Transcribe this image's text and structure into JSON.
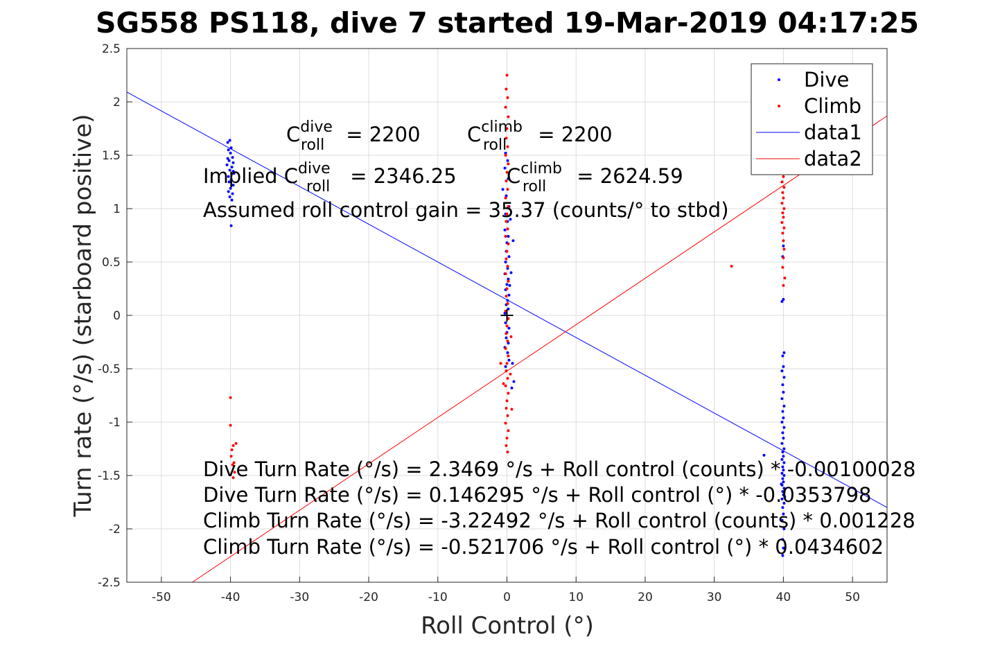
{
  "chart_data": {
    "type": "scatter",
    "title": "SG558 PS118, dive 7 started 19-Mar-2019 04:17:25",
    "xlabel": "Roll Control (°)",
    "ylabel": "Turn rate (°/s) (starboard positive)",
    "xlim": [
      -55,
      55
    ],
    "ylim": [
      -2.5,
      2.5
    ],
    "xticks": [
      -50,
      -40,
      -30,
      -20,
      -10,
      0,
      10,
      20,
      30,
      40,
      50
    ],
    "yticks": [
      -2.5,
      -2,
      -1.5,
      -1,
      -0.5,
      0,
      0.5,
      1,
      1.5,
      2,
      2.5
    ],
    "xtick_labels": [
      "-50",
      "-40",
      "-30",
      "-20",
      "-10",
      "0",
      "10",
      "20",
      "30",
      "40",
      "50"
    ],
    "ytick_labels": [
      "-2.5",
      "-2",
      "-1.5",
      "-1",
      "-0.5",
      "0",
      "0.5",
      "1",
      "1.5",
      "2",
      "2.5"
    ],
    "grid": true,
    "legend_position": "top-right",
    "legend": [
      "Dive",
      "Climb",
      "data1",
      "data2"
    ],
    "series": [
      {
        "name": "Dive",
        "kind": "points",
        "color": "#0000ff",
        "points": [
          [
            -40.4,
            1.62
          ],
          [
            -40.1,
            1.64
          ],
          [
            -39.9,
            1.57
          ],
          [
            -40.3,
            1.55
          ],
          [
            -40.0,
            1.52
          ],
          [
            -39.7,
            1.48
          ],
          [
            -40.2,
            1.45
          ],
          [
            -39.6,
            1.43
          ],
          [
            -40.5,
            1.41
          ],
          [
            -39.8,
            1.39
          ],
          [
            -40.1,
            1.36
          ],
          [
            -39.5,
            1.33
          ],
          [
            -40.3,
            1.3
          ],
          [
            -39.9,
            1.27
          ],
          [
            -40.2,
            1.25
          ],
          [
            -39.6,
            1.22
          ],
          [
            -40.0,
            1.19
          ],
          [
            -40.3,
            1.16
          ],
          [
            -39.7,
            1.14
          ],
          [
            -40.1,
            1.11
          ],
          [
            -39.8,
            1.08
          ],
          [
            -39.9,
            0.84
          ],
          [
            -39.6,
            1.35
          ],
          [
            -40.4,
            1.47
          ],
          [
            -0.2,
            1.52
          ],
          [
            0.1,
            1.45
          ],
          [
            -0.3,
            1.38
          ],
          [
            0.2,
            1.28
          ],
          [
            -0.1,
            1.12
          ],
          [
            0.3,
            1.02
          ],
          [
            -0.2,
            0.95
          ],
          [
            0.1,
            0.88
          ],
          [
            -0.3,
            0.8
          ],
          [
            0.2,
            0.74
          ],
          [
            0.0,
            0.68
          ],
          [
            -0.1,
            0.6
          ],
          [
            0.3,
            0.55
          ],
          [
            -0.2,
            0.5
          ],
          [
            0.1,
            0.44
          ],
          [
            -0.3,
            0.39
          ],
          [
            0.2,
            0.34
          ],
          [
            0.0,
            0.29
          ],
          [
            -0.2,
            0.24
          ],
          [
            0.3,
            0.19
          ],
          [
            0.1,
            0.14
          ],
          [
            -0.1,
            0.1
          ],
          [
            0.2,
            0.06
          ],
          [
            -0.3,
            0.02
          ],
          [
            0.1,
            -0.03
          ],
          [
            -0.2,
            -0.07
          ],
          [
            0.3,
            -0.12
          ],
          [
            0.0,
            -0.16
          ],
          [
            -0.1,
            -0.21
          ],
          [
            0.2,
            -0.26
          ],
          [
            -0.3,
            -0.3
          ],
          [
            0.1,
            -0.35
          ],
          [
            0.3,
            -0.42
          ],
          [
            -0.2,
            -0.48
          ],
          [
            0.8,
            -0.45
          ],
          [
            1.0,
            -0.62
          ],
          [
            0.7,
            -0.68
          ],
          [
            0.9,
            0.7
          ],
          [
            0.6,
            0.4
          ],
          [
            0.5,
            0.9
          ],
          [
            -0.6,
            1.18
          ],
          [
            0.4,
            0.28
          ],
          [
            40.0,
            0.65
          ],
          [
            39.9,
            0.55
          ],
          [
            40.0,
            0.15
          ],
          [
            39.8,
            0.13
          ],
          [
            40.1,
            -0.35
          ],
          [
            39.9,
            -0.38
          ],
          [
            40.0,
            -0.48
          ],
          [
            39.8,
            -0.52
          ],
          [
            40.1,
            -0.58
          ],
          [
            39.9,
            -0.65
          ],
          [
            40.0,
            -0.72
          ],
          [
            39.8,
            -0.78
          ],
          [
            40.1,
            -0.85
          ],
          [
            39.9,
            -0.9
          ],
          [
            40.0,
            -0.96
          ],
          [
            39.8,
            -1.0
          ],
          [
            40.1,
            -1.05
          ],
          [
            39.9,
            -1.1
          ],
          [
            40.0,
            -1.15
          ],
          [
            39.8,
            -1.2
          ],
          [
            40.1,
            -1.25
          ],
          [
            39.9,
            -1.28
          ],
          [
            40.0,
            -1.32
          ],
          [
            39.8,
            -1.35
          ],
          [
            40.1,
            -1.38
          ],
          [
            39.9,
            -1.42
          ],
          [
            40.0,
            -1.45
          ],
          [
            39.8,
            -1.48
          ],
          [
            40.1,
            -1.5
          ],
          [
            39.9,
            -1.53
          ],
          [
            40.0,
            -1.56
          ],
          [
            39.8,
            -1.59
          ],
          [
            40.1,
            -1.62
          ],
          [
            39.9,
            -1.65
          ],
          [
            40.0,
            -1.68
          ],
          [
            39.8,
            -1.72
          ],
          [
            40.1,
            -1.76
          ],
          [
            39.9,
            -1.8
          ],
          [
            40.0,
            -1.86
          ],
          [
            39.8,
            -1.92
          ],
          [
            40.1,
            -2.0
          ],
          [
            39.9,
            -2.1
          ],
          [
            40.0,
            -2.18
          ],
          [
            39.9,
            -2.25
          ],
          [
            37.2,
            -1.31
          ],
          [
            39.7,
            -1.58
          ],
          [
            40.2,
            -1.7
          ]
        ]
      },
      {
        "name": "Climb",
        "kind": "points",
        "color": "#ff0000",
        "points": [
          [
            -40.0,
            -0.77
          ],
          [
            -40.0,
            -1.03
          ],
          [
            -39.6,
            -1.22
          ],
          [
            -39.2,
            -1.2
          ],
          [
            -39.8,
            -1.26
          ],
          [
            -39.9,
            -1.32
          ],
          [
            -39.5,
            -1.38
          ],
          [
            -39.7,
            -1.4
          ],
          [
            -39.4,
            -1.47
          ],
          [
            -39.6,
            -1.52
          ],
          [
            0.0,
            2.25
          ],
          [
            -0.1,
            2.12
          ],
          [
            0.1,
            2.04
          ],
          [
            -0.2,
            1.95
          ],
          [
            0.2,
            1.86
          ],
          [
            0.0,
            1.75
          ],
          [
            -0.1,
            1.66
          ],
          [
            0.1,
            1.58
          ],
          [
            -0.2,
            1.5
          ],
          [
            0.2,
            1.42
          ],
          [
            0.0,
            1.34
          ],
          [
            -0.1,
            1.26
          ],
          [
            0.1,
            1.18
          ],
          [
            -0.2,
            1.1
          ],
          [
            0.2,
            1.02
          ],
          [
            0.0,
            0.95
          ],
          [
            -0.1,
            0.88
          ],
          [
            0.1,
            0.81
          ],
          [
            -0.2,
            0.74
          ],
          [
            0.2,
            0.67
          ],
          [
            0.0,
            0.6
          ],
          [
            -0.1,
            0.53
          ],
          [
            0.1,
            0.46
          ],
          [
            -0.2,
            0.39
          ],
          [
            0.2,
            0.32
          ],
          [
            0.0,
            0.25
          ],
          [
            -0.1,
            0.18
          ],
          [
            0.1,
            0.11
          ],
          [
            -0.2,
            0.04
          ],
          [
            0.2,
            -0.03
          ],
          [
            0.0,
            -0.1
          ],
          [
            -0.1,
            -0.17
          ],
          [
            0.1,
            -0.24
          ],
          [
            -0.2,
            -0.31
          ],
          [
            0.2,
            -0.38
          ],
          [
            0.0,
            -0.45
          ],
          [
            -0.1,
            -0.52
          ],
          [
            0.1,
            -0.59
          ],
          [
            -0.2,
            -0.66
          ],
          [
            0.2,
            -0.73
          ],
          [
            0.0,
            -0.8
          ],
          [
            -0.1,
            -0.87
          ],
          [
            0.1,
            -0.94
          ],
          [
            -0.2,
            -1.01
          ],
          [
            0.2,
            -1.08
          ],
          [
            0.0,
            -1.15
          ],
          [
            -0.1,
            -1.22
          ],
          [
            0.1,
            -1.28
          ],
          [
            -0.9,
            -0.45
          ],
          [
            0.6,
            -0.2
          ],
          [
            0.5,
            -0.55
          ],
          [
            -0.5,
            -0.64
          ],
          [
            0.7,
            -0.88
          ],
          [
            40.0,
            1.3
          ],
          [
            39.8,
            1.25
          ],
          [
            40.1,
            1.2
          ],
          [
            39.9,
            1.15
          ],
          [
            40.0,
            1.1
          ],
          [
            39.8,
            1.05
          ],
          [
            40.1,
            1.0
          ],
          [
            39.9,
            0.96
          ],
          [
            40.0,
            0.92
          ],
          [
            39.8,
            0.87
          ],
          [
            40.1,
            0.82
          ],
          [
            39.9,
            0.77
          ],
          [
            40.0,
            0.7
          ],
          [
            40.1,
            0.62
          ],
          [
            40.0,
            0.54
          ],
          [
            39.9,
            0.45
          ],
          [
            40.2,
            0.35
          ],
          [
            40.0,
            0.28
          ],
          [
            39.9,
            1.33
          ],
          [
            40.1,
            1.35
          ],
          [
            32.5,
            0.46
          ]
        ]
      },
      {
        "name": "data1",
        "kind": "line",
        "color": "#0000ff",
        "intercept": 0.146295,
        "slope": -0.0353798
      },
      {
        "name": "data2",
        "kind": "line",
        "color": "#ff0000",
        "intercept": -0.521706,
        "slope": 0.0434602
      }
    ],
    "marker": {
      "x": 0,
      "y": 0,
      "color": "#000000"
    },
    "annotations": {
      "c_roll_dive_prefix": "C",
      "c_roll_dive_sup": "dive",
      "c_roll_dive_sub": "roll",
      "c_roll_dive_value": " = 2200",
      "c_roll_climb_prefix": "C",
      "c_roll_climb_sup": "climb",
      "c_roll_climb_sub": "roll",
      "c_roll_climb_value": " = 2200",
      "implied_dive_prefix": "Implied C",
      "implied_dive_sup": "dive",
      "implied_dive_sub": "roll",
      "implied_dive_value": " = 2346.25",
      "implied_climb_prefix": "C",
      "implied_climb_sup": "climb",
      "implied_climb_sub": "roll",
      "implied_climb_value": " = 2624.59",
      "gain": "Assumed roll control gain = 35.37 (counts/° to stbd)",
      "eq1": "Dive Turn Rate (°/s) = 2.3469 °/s + Roll control (counts) * -0.00100028",
      "eq2": "Dive Turn Rate (°/s) = 0.146295 °/s + Roll control (°) * -0.0353798",
      "eq3": "Climb Turn Rate (°/s) = -3.22492 °/s + Roll control (counts) * 0.001228",
      "eq4": "Climb Turn Rate (°/s) = -0.521706 °/s + Roll control (°) * 0.0434602"
    }
  }
}
